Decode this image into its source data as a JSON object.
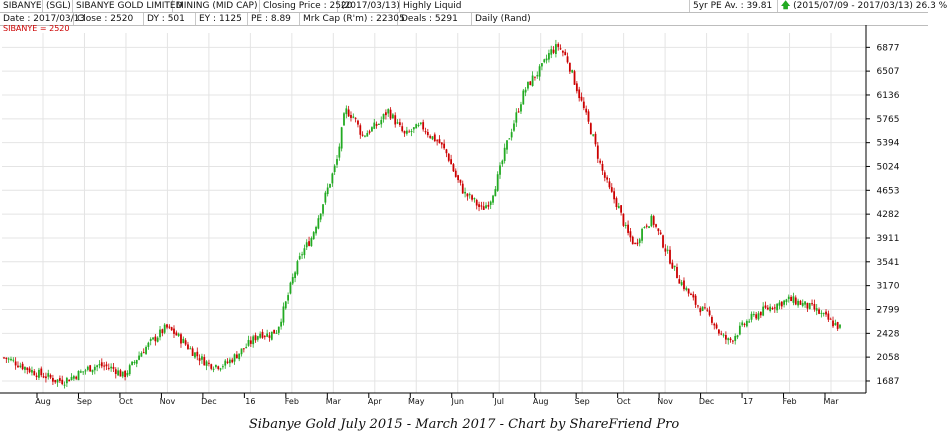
{
  "header": {
    "row1": {
      "ticker": "SIBANYE",
      "code": "(SGL)",
      "company": "SIBANYE GOLD LIMITED",
      "sector": "MINING (MID CAP)",
      "closing_price_label": "Closing Price : 2520",
      "closing_date": "(2017/03/13)",
      "liquidity": "Highly Liquid",
      "pe_avg": "5yr PE Av. : 39.81",
      "range": "(2015/07/09 - 2017/03/13)",
      "change": "26.3 %"
    },
    "row2": {
      "date": "Date : 2017/03/13",
      "close": "Close : 2520",
      "dy": "DY : 501",
      "ey": "EY : 1125",
      "pe": "PE : 8.89",
      "mkt_cap": "Mrk Cap (R'm) : 22305",
      "deals": "Deals : 5291",
      "period": "Daily (Rand)"
    }
  },
  "series_label": "SIBANYE = 2520",
  "caption": "Sibanye Gold July 2015 - March 2017 - Chart by ShareFriend Pro",
  "colors": {
    "up": "#22aa22",
    "down": "#cc0000",
    "grid": "#e4e4e4",
    "axis": "#000000"
  },
  "chart_data": {
    "type": "candlestick",
    "title": "",
    "x_tick_labels": [
      "Aug",
      "Sep",
      "Oct",
      "Nov",
      "Dec",
      "16",
      "Feb",
      "Mar",
      "Apr",
      "May",
      "Jun",
      "Jul",
      "Aug",
      "Sep",
      "Oct",
      "Nov",
      "Dec",
      "17",
      "Feb",
      "Mar"
    ],
    "y_tick_labels": [
      "6877",
      "6507",
      "6136",
      "5765",
      "5394",
      "5024",
      "4653",
      "4282",
      "3911",
      "3541",
      "3170",
      "2799",
      "2428",
      "2058",
      "1687"
    ],
    "ylim": [
      1500,
      7100
    ],
    "close_series_approx": [
      2050,
      2000,
      1930,
      1860,
      1800,
      1760,
      1700,
      1690,
      1750,
      1820,
      1890,
      1930,
      1910,
      1870,
      1760,
      1930,
      2120,
      2260,
      2390,
      2520,
      2430,
      2300,
      2160,
      2040,
      1950,
      1930,
      1950,
      2060,
      2180,
      2300,
      2440,
      2400,
      2480,
      2880,
      3350,
      3700,
      3900,
      4300,
      4700,
      5100,
      5900,
      5800,
      5500,
      5600,
      5700,
      5900,
      5700,
      5500,
      5600,
      5650,
      5500,
      5400,
      5200,
      4850,
      4600,
      4500,
      4350,
      4500,
      4900,
      5400,
      5800,
      6200,
      6400,
      6550,
      6800,
      6900,
      6700,
      6300,
      5900,
      5500,
      5000,
      4650,
      4400,
      4000,
      3800,
      4100,
      4200,
      3900,
      3600,
      3300,
      3100,
      2900,
      2780,
      2650,
      2400,
      2300,
      2450,
      2600,
      2700,
      2780,
      2850,
      2900,
      2950,
      2920,
      2860,
      2800,
      2700,
      2600,
      2520
    ],
    "grid": true,
    "legend": "none"
  }
}
